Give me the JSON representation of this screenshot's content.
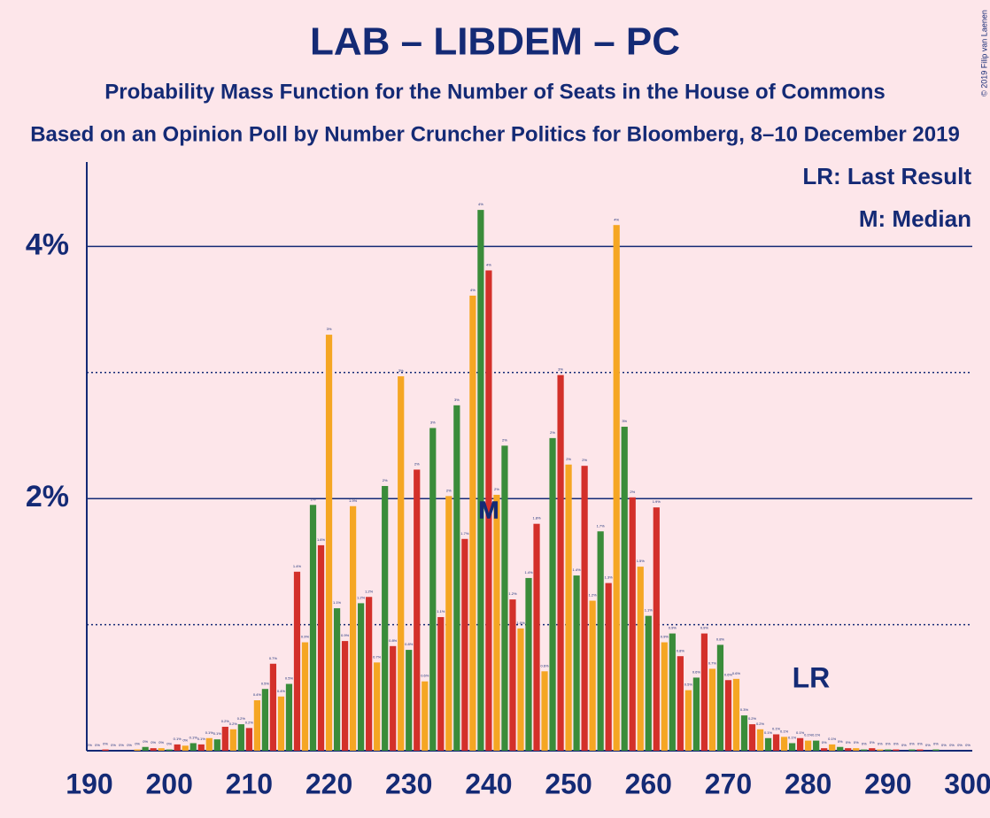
{
  "chart_data": {
    "type": "bar",
    "title": "LAB – LIBDEM – PC",
    "subtitle": "Probability Mass Function for the Number of Seats in the House of Commons",
    "source_line": "Based on an Opinion Poll by Number Cruncher Politics for Bloomberg, 8–10 December 2019",
    "copyright": "© 2019 Filip van Laenen",
    "legend": [
      "LR: Last Result",
      "M: Median"
    ],
    "x": [
      190,
      191,
      192,
      193,
      194,
      195,
      196,
      197,
      198,
      199,
      200,
      201,
      202,
      203,
      204,
      205,
      206,
      207,
      208,
      209,
      210,
      211,
      212,
      213,
      214,
      215,
      216,
      217,
      218,
      219,
      220,
      221,
      222,
      223,
      224,
      225,
      226,
      227,
      228,
      229,
      230,
      231,
      232,
      233,
      234,
      235,
      236,
      237,
      238,
      239,
      240,
      241,
      242,
      243,
      244,
      245,
      246,
      247,
      248,
      249,
      250,
      251,
      252,
      253,
      254,
      255,
      256,
      257,
      258,
      259,
      260,
      261,
      262,
      263,
      264,
      265,
      266,
      267,
      268,
      269,
      270,
      271,
      272,
      273,
      274,
      275,
      276,
      277,
      278,
      279,
      280,
      281,
      282,
      283,
      284,
      285,
      286,
      287,
      288,
      289,
      290,
      291,
      292,
      293,
      294,
      295,
      296,
      297,
      298,
      299,
      300
    ],
    "values": [
      0,
      0,
      0.01,
      0,
      0,
      0,
      0.01,
      0.03,
      0.02,
      0.02,
      0.01,
      0.05,
      0.04,
      0.06,
      0.05,
      0.1,
      0.09,
      0.19,
      0.17,
      0.21,
      0.18,
      0.4,
      0.49,
      0.69,
      0.43,
      0.53,
      1.42,
      0.86,
      1.95,
      1.63,
      3.3,
      1.13,
      0.87,
      1.94,
      1.17,
      1.22,
      0.7,
      2.1,
      0.83,
      2.97,
      0.8,
      2.23,
      0.55,
      2.56,
      1.06,
      2.02,
      2.74,
      1.68,
      3.61,
      4.29,
      3.81,
      2.03,
      2.42,
      1.2,
      0.97,
      1.37,
      1.8,
      0.63,
      2.48,
      2.98,
      2.27,
      1.39,
      2.26,
      1.19,
      1.74,
      1.33,
      4.17,
      2.57,
      2.01,
      1.46,
      1.07,
      1.93,
      0.86,
      0.93,
      0.75,
      0.48,
      0.58,
      0.93,
      0.65,
      0.84,
      0.56,
      0.57,
      0.28,
      0.21,
      0.17,
      0.1,
      0.13,
      0.11,
      0.06,
      0.1,
      0.08,
      0.08,
      0.02,
      0.05,
      0.03,
      0.02,
      0.02,
      0.01,
      0.02,
      0.01,
      0.01,
      0.01,
      0,
      0.01,
      0.01,
      0,
      0.01,
      0,
      0,
      0,
      0
    ],
    "value_labels": [
      "0%",
      "0%",
      "0%",
      "0%",
      "0%",
      "0%",
      "0%",
      "0%",
      "0%",
      "0%",
      "0%",
      "0.1%",
      "0%",
      "0.1%",
      "0.1%",
      "0.1%",
      "0.1%",
      "0.2%",
      "0.2%",
      "0.2%",
      "0.2%",
      "0.4%",
      "0.5%",
      "0.7%",
      "0.4%",
      "0.5%",
      "1.4%",
      "0.9%",
      "2%",
      "1.6%",
      "3%",
      "1.1%",
      "0.9%",
      "1.9%",
      "1.2%",
      "1.2%",
      "0.7%",
      "2%",
      "0.8%",
      "3%",
      "0.8%",
      "2%",
      "0.6%",
      "3%",
      "1.1%",
      "2%",
      "3%",
      "1.7%",
      "4%",
      "4%",
      "4%",
      "2%",
      "2%",
      "1.2%",
      "1.0%",
      "1.4%",
      "1.8%",
      "0.6%",
      "2%",
      "3%",
      "2%",
      "1.4%",
      "2%",
      "1.2%",
      "1.7%",
      "1.3%",
      "4%",
      "3%",
      "2%",
      "1.5%",
      "1.1%",
      "1.9%",
      "0.9%",
      "0.9%",
      "0.8%",
      "0.5%",
      "0.6%",
      "0.9%",
      "0.7%",
      "0.8%",
      "0.6%",
      "0.6%",
      "0.3%",
      "0.2%",
      "0.2%",
      "0.1%",
      "0.1%",
      "0.1%",
      "0.1%",
      "0.1%",
      "0.1%",
      "0.1%",
      "0%",
      "0.1%",
      "0%",
      "0%",
      "0%",
      "0%",
      "0%",
      "0%",
      "0%",
      "0%",
      "0%",
      "0%",
      "0%",
      "0%",
      "0%",
      "0%",
      "0%",
      "0%",
      "0%"
    ],
    "colors": [
      "#f5a623",
      "#3a8c3a",
      "#d3302a"
    ],
    "median": {
      "value": 240,
      "label": "M"
    },
    "last_result": {
      "value": 278,
      "label": "LR"
    },
    "xlim": [
      190,
      300
    ],
    "xticks": [
      190,
      200,
      210,
      220,
      230,
      240,
      250,
      260,
      270,
      280,
      290,
      300
    ],
    "ylim": [
      0,
      4.67
    ],
    "yticks": [
      {
        "value": 2,
        "label": "2%"
      },
      {
        "value": 4,
        "label": "4%"
      }
    ],
    "minor_yticks": [
      1,
      3
    ],
    "grid": true
  }
}
